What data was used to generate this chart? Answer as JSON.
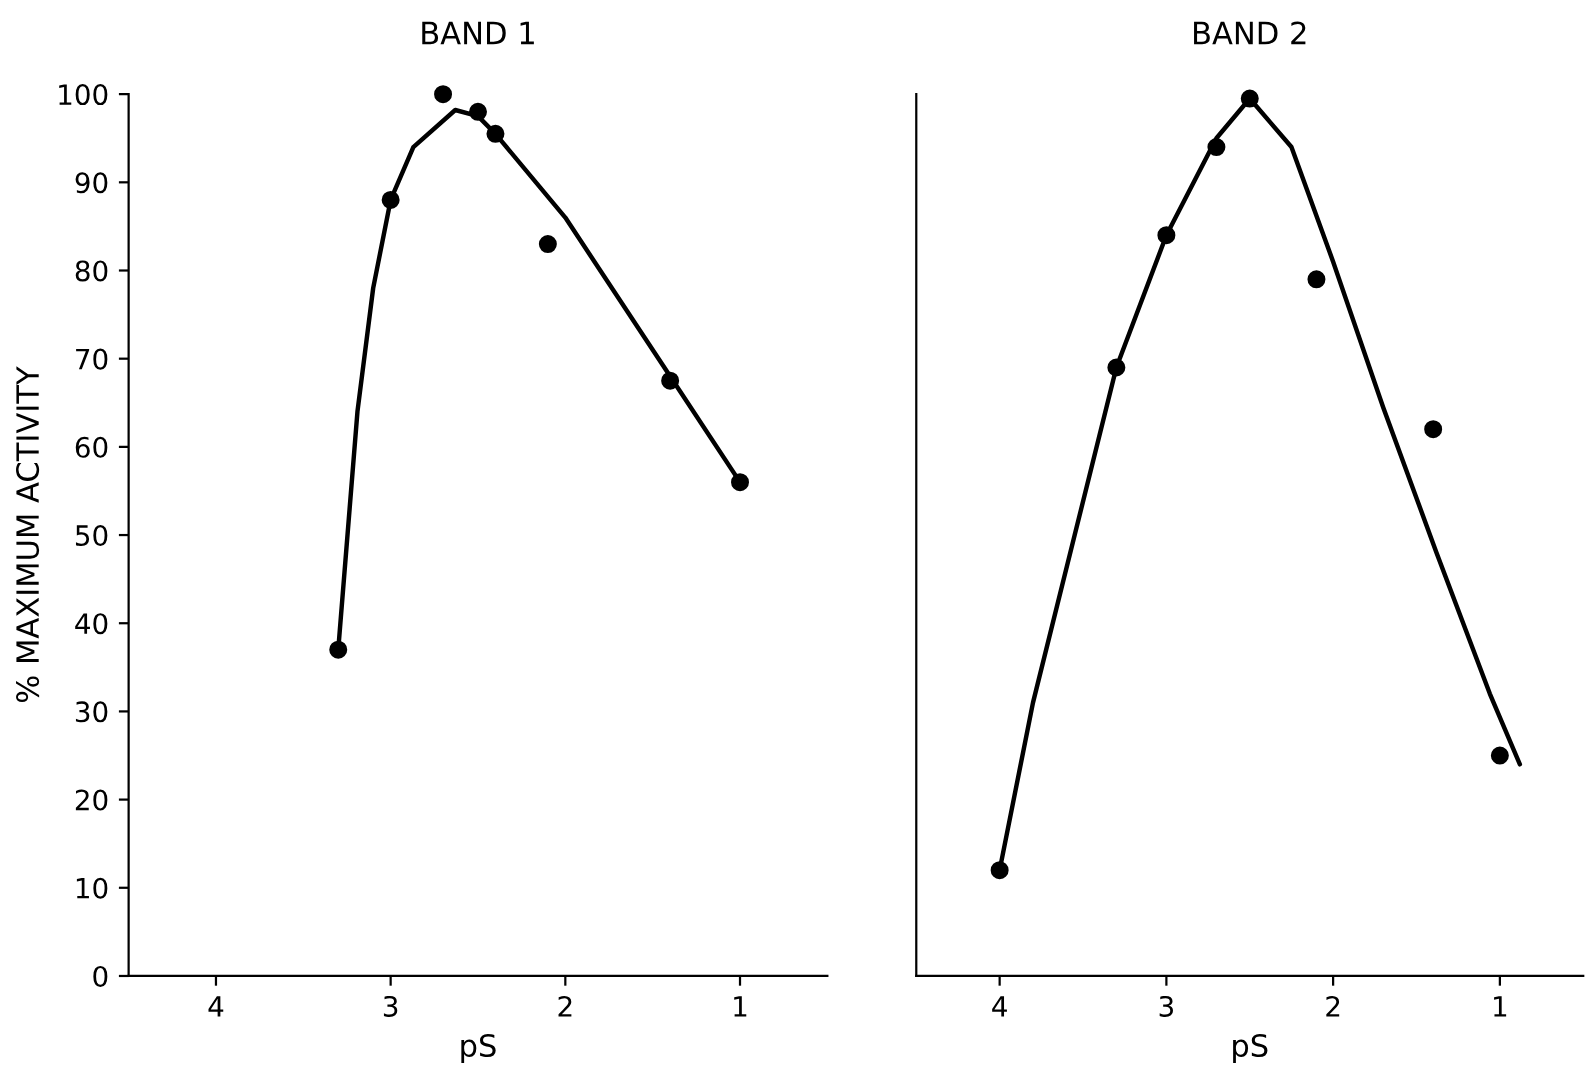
{
  "chart_data": [
    {
      "type": "scatter",
      "title": "BAND 1",
      "xlabel": "pS",
      "ylabel": "% MAXIMUM ACTIVITY",
      "xlim": [
        4.5,
        0.5
      ],
      "xticks": [
        4,
        3,
        2,
        1
      ],
      "ylim": [
        0,
        100
      ],
      "yticks": [
        0,
        10,
        20,
        30,
        40,
        50,
        60,
        70,
        80,
        90,
        100
      ],
      "grid": false,
      "legend": false,
      "series": [
        {
          "marker": "circle",
          "color": "#000000",
          "x": [
            3.3,
            3.0,
            2.7,
            2.5,
            2.4,
            2.1,
            1.4,
            1.0
          ],
          "values": [
            37,
            88,
            100,
            98,
            95.5,
            83,
            67.5,
            56
          ]
        },
        {
          "type": "line",
          "marker": "none",
          "line_style": "solid",
          "color": "#000000",
          "x": [
            3.3,
            3.19,
            3.1,
            3.0,
            2.87,
            2.63,
            2.5,
            2.4,
            2.0,
            1.4,
            1.0
          ],
          "values": [
            37,
            64,
            78,
            88,
            94,
            98.2,
            97.5,
            95.5,
            86,
            68,
            56
          ]
        }
      ]
    },
    {
      "type": "scatter",
      "title": "BAND 2",
      "xlabel": "pS",
      "xlim": [
        4.5,
        0.5
      ],
      "xticks": [
        4,
        3,
        2,
        1
      ],
      "ylim": [
        0,
        100
      ],
      "tick_labels": "x",
      "grid": false,
      "legend": false,
      "series": [
        {
          "marker": "circle",
          "color": "#000000",
          "x": [
            4.0,
            3.3,
            3.0,
            2.7,
            2.5,
            2.1,
            1.4,
            1.0
          ],
          "values": [
            12,
            69,
            84,
            94,
            99.5,
            79,
            62,
            25
          ]
        },
        {
          "type": "line",
          "marker": "none",
          "line_style": "solid",
          "color": "#000000",
          "x": [
            4.0,
            3.8,
            3.55,
            3.3,
            3.0,
            2.7,
            2.5,
            2.25,
            2.0,
            1.7,
            1.38,
            1.06,
            0.88
          ],
          "values": [
            12,
            31,
            50,
            69,
            84,
            95,
            99.5,
            94,
            81,
            64.5,
            48,
            32,
            24
          ]
        }
      ]
    }
  ]
}
